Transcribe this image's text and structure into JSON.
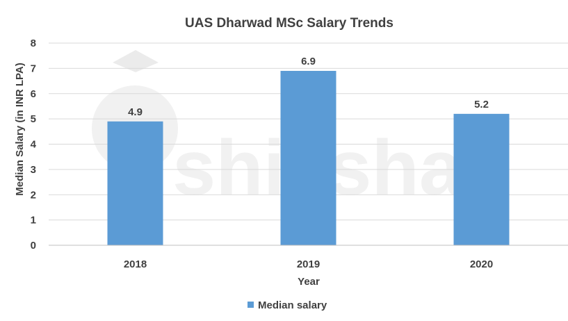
{
  "watermark": {
    "text": "shiksha"
  },
  "chart_data": {
    "type": "bar",
    "title": "UAS Dharwad MSc Salary Trends",
    "xlabel": "Year",
    "ylabel": "Median Salary (in INR LPA)",
    "categories": [
      "2018",
      "2019",
      "2020"
    ],
    "series": [
      {
        "name": "Median salary",
        "values": [
          4.9,
          6.9,
          5.2
        ],
        "color": "#5b9bd5"
      }
    ],
    "ylim": [
      0,
      8
    ],
    "yticks": [
      0,
      1,
      2,
      3,
      4,
      5,
      6,
      7,
      8
    ],
    "grid": true,
    "legend": "bottom",
    "colors": {
      "bar": "#5b9bd5",
      "text": "#404040",
      "axis_text": "#404040",
      "grid": "#d9d9d9",
      "baseline": "#bfbfbf",
      "watermark": "#e6e6e6"
    }
  }
}
